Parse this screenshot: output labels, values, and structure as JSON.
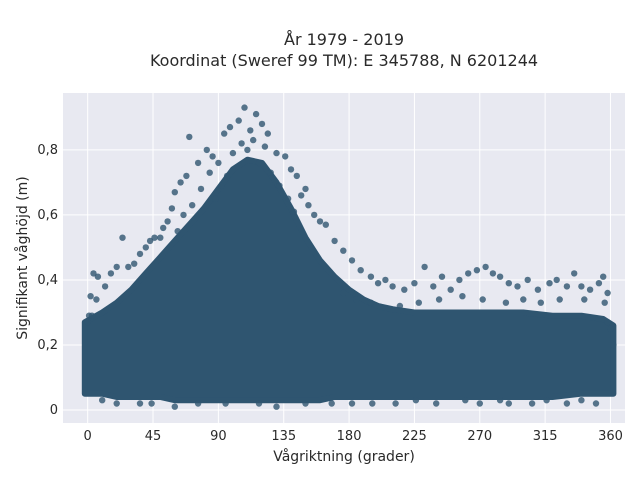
{
  "chart_data": {
    "type": "scatter",
    "title_line1": "År 1979 - 2019",
    "title_line2": "Koordinat (Sweref 99 TM): E 345788, N 6201244",
    "xlabel": "Vågriktning (grader)",
    "ylabel": "Signifikant våghöjd (m)",
    "xlim": [
      -17,
      370
    ],
    "ylim": [
      -0.04,
      0.975
    ],
    "x_ticks": [
      {
        "value": 0,
        "label": "0"
      },
      {
        "value": 45,
        "label": "45"
      },
      {
        "value": 90,
        "label": "90"
      },
      {
        "value": 135,
        "label": "135"
      },
      {
        "value": 180,
        "label": "180"
      },
      {
        "value": 225,
        "label": "225"
      },
      {
        "value": 270,
        "label": "270"
      },
      {
        "value": 315,
        "label": "315"
      },
      {
        "value": 360,
        "label": "360"
      }
    ],
    "y_ticks": [
      {
        "value": 0,
        "label": "0"
      },
      {
        "value": 0.2,
        "label": "0,2"
      },
      {
        "value": 0.4,
        "label": "0,4"
      },
      {
        "value": 0.6,
        "label": "0,6"
      },
      {
        "value": 0.8,
        "label": "0,8"
      }
    ],
    "grid": true,
    "marker_color": "#2f5570",
    "plot_bg": "#e8e9f1",
    "points": [
      [
        108,
        0.93
      ],
      [
        116,
        0.91
      ],
      [
        104,
        0.89
      ],
      [
        120,
        0.88
      ],
      [
        98,
        0.87
      ],
      [
        112,
        0.86
      ],
      [
        124,
        0.85
      ],
      [
        94,
        0.85
      ],
      [
        70,
        0.84
      ],
      [
        82,
        0.8
      ],
      [
        86,
        0.78
      ],
      [
        76,
        0.76
      ],
      [
        130,
        0.79
      ],
      [
        136,
        0.78
      ],
      [
        140,
        0.74
      ],
      [
        144,
        0.72
      ],
      [
        150,
        0.68
      ],
      [
        147,
        0.66
      ],
      [
        152,
        0.63
      ],
      [
        156,
        0.6
      ],
      [
        160,
        0.58
      ],
      [
        164,
        0.57
      ],
      [
        68,
        0.72
      ],
      [
        64,
        0.7
      ],
      [
        60,
        0.67
      ],
      [
        58,
        0.62
      ],
      [
        55,
        0.58
      ],
      [
        52,
        0.56
      ],
      [
        50,
        0.53
      ],
      [
        46,
        0.53
      ],
      [
        43,
        0.52
      ],
      [
        40,
        0.5
      ],
      [
        24,
        0.53
      ],
      [
        36,
        0.48
      ],
      [
        32,
        0.45
      ],
      [
        28,
        0.44
      ],
      [
        20,
        0.44
      ],
      [
        16,
        0.42
      ],
      [
        4,
        0.42
      ],
      [
        7,
        0.41
      ],
      [
        12,
        0.38
      ],
      [
        2,
        0.35
      ],
      [
        6,
        0.34
      ],
      [
        170,
        0.52
      ],
      [
        176,
        0.49
      ],
      [
        182,
        0.46
      ],
      [
        188,
        0.43
      ],
      [
        195,
        0.41
      ],
      [
        200,
        0.39
      ],
      [
        205,
        0.4
      ],
      [
        210,
        0.38
      ],
      [
        218,
        0.37
      ],
      [
        225,
        0.39
      ],
      [
        232,
        0.44
      ],
      [
        238,
        0.38
      ],
      [
        244,
        0.41
      ],
      [
        250,
        0.37
      ],
      [
        256,
        0.4
      ],
      [
        262,
        0.42
      ],
      [
        268,
        0.43
      ],
      [
        274,
        0.44
      ],
      [
        279,
        0.42
      ],
      [
        284,
        0.41
      ],
      [
        290,
        0.39
      ],
      [
        296,
        0.38
      ],
      [
        303,
        0.4
      ],
      [
        310,
        0.37
      ],
      [
        318,
        0.39
      ],
      [
        323,
        0.4
      ],
      [
        330,
        0.38
      ],
      [
        335,
        0.42
      ],
      [
        340,
        0.38
      ],
      [
        346,
        0.37
      ],
      [
        352,
        0.39
      ],
      [
        355,
        0.41
      ],
      [
        358,
        0.36
      ],
      [
        176,
        0.36
      ],
      [
        185,
        0.34
      ],
      [
        195,
        0.33
      ],
      [
        215,
        0.32
      ],
      [
        228,
        0.33
      ],
      [
        242,
        0.34
      ],
      [
        258,
        0.35
      ],
      [
        272,
        0.34
      ],
      [
        288,
        0.33
      ],
      [
        300,
        0.34
      ],
      [
        312,
        0.33
      ],
      [
        325,
        0.34
      ],
      [
        342,
        0.34
      ],
      [
        356,
        0.33
      ],
      [
        88,
        0.65
      ],
      [
        92,
        0.69
      ],
      [
        96,
        0.72
      ],
      [
        110,
        0.8
      ],
      [
        118,
        0.76
      ],
      [
        126,
        0.73
      ],
      [
        78,
        0.68
      ],
      [
        72,
        0.63
      ],
      [
        66,
        0.6
      ],
      [
        62,
        0.55
      ],
      [
        132,
        0.69
      ],
      [
        138,
        0.65
      ],
      [
        142,
        0.61
      ],
      [
        100,
        0.79
      ],
      [
        106,
        0.82
      ],
      [
        114,
        0.83
      ],
      [
        122,
        0.81
      ],
      [
        90,
        0.76
      ],
      [
        84,
        0.73
      ],
      [
        212,
        0.02
      ],
      [
        270,
        0.02
      ],
      [
        306,
        0.02
      ],
      [
        330,
        0.02
      ],
      [
        20,
        0.02
      ],
      [
        44,
        0.02
      ],
      [
        60,
        0.01
      ],
      [
        95,
        0.02
      ],
      [
        118,
        0.02
      ],
      [
        150,
        0.02
      ],
      [
        182,
        0.02
      ],
      [
        240,
        0.02
      ],
      [
        290,
        0.02
      ],
      [
        350,
        0.02
      ],
      [
        10,
        0.03
      ],
      [
        36,
        0.02
      ],
      [
        226,
        0.03
      ],
      [
        260,
        0.03
      ],
      [
        340,
        0.03
      ],
      [
        130,
        0.01
      ],
      [
        168,
        0.02
      ],
      [
        196,
        0.02
      ],
      [
        284,
        0.03
      ],
      [
        316,
        0.03
      ],
      [
        76,
        0.02
      ],
      [
        1,
        0.29
      ],
      [
        3,
        0.29
      ],
      [
        358,
        0.27
      ],
      [
        360,
        0.25
      ],
      [
        0,
        0.27
      ],
      [
        362,
        0.2
      ]
    ],
    "envelope": {
      "x": [
        -2,
        10,
        20,
        30,
        40,
        50,
        60,
        70,
        80,
        90,
        100,
        110,
        120,
        130,
        140,
        150,
        160,
        170,
        180,
        190,
        200,
        210,
        225,
        240,
        260,
        280,
        300,
        320,
        340,
        355,
        362
      ],
      "upper": [
        0.27,
        0.3,
        0.33,
        0.37,
        0.42,
        0.47,
        0.52,
        0.57,
        0.62,
        0.68,
        0.74,
        0.77,
        0.76,
        0.7,
        0.62,
        0.53,
        0.46,
        0.41,
        0.37,
        0.34,
        0.32,
        0.31,
        0.3,
        0.3,
        0.3,
        0.3,
        0.3,
        0.29,
        0.29,
        0.28,
        0.26
      ],
      "lower": [
        0.05,
        0.05,
        0.04,
        0.04,
        0.04,
        0.04,
        0.03,
        0.03,
        0.03,
        0.03,
        0.03,
        0.03,
        0.03,
        0.03,
        0.03,
        0.03,
        0.03,
        0.04,
        0.04,
        0.04,
        0.04,
        0.04,
        0.04,
        0.04,
        0.04,
        0.04,
        0.04,
        0.04,
        0.05,
        0.05,
        0.05
      ]
    }
  }
}
